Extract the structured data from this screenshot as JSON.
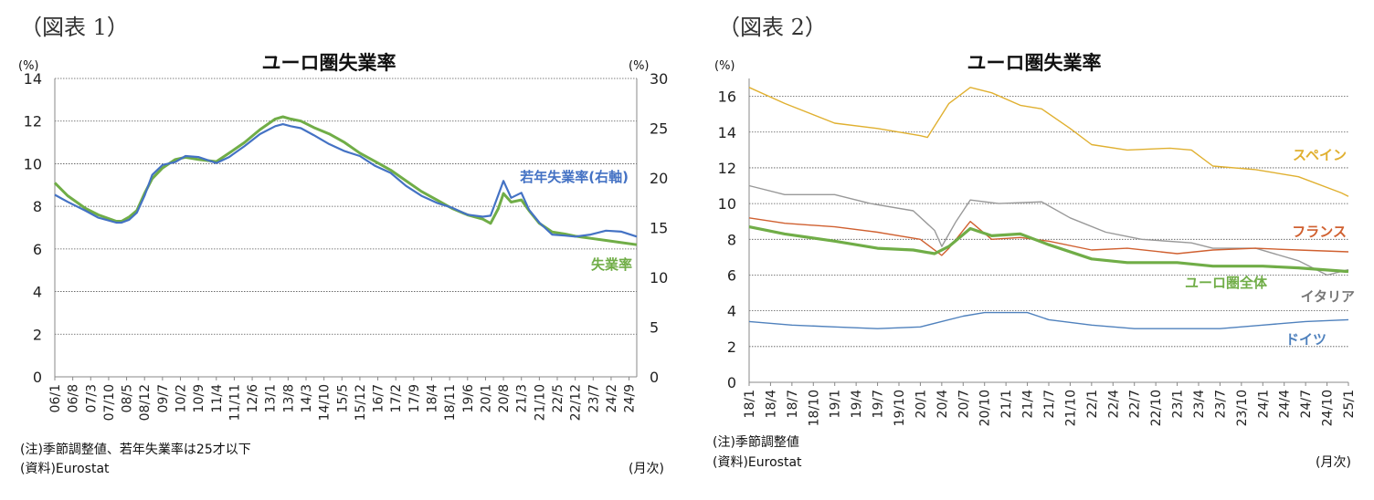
{
  "figure1": {
    "panel_label": "（図表 1）",
    "note": "(注)季節調整値、若年失業率は25才以下",
    "source": "(資料)Eurostat",
    "freq_label": "(月次)"
  },
  "figure2": {
    "panel_label": "（図表 2）",
    "note": "(注)季節調整値",
    "source": "(資料)Eurostat",
    "freq_label": "(月次)"
  },
  "chart_data": [
    {
      "type": "line",
      "title": "ユーロ圏失業率",
      "ylabel_left": "(%)",
      "ylabel_right": "(%)",
      "ylim_left": [
        0,
        14
      ],
      "ylim_right": [
        0,
        30
      ],
      "yticks_left": [
        "0",
        "2",
        "4",
        "6",
        "8",
        "10",
        "12",
        "14"
      ],
      "yticks_right": [
        "0",
        "5",
        "10",
        "15",
        "20",
        "25",
        "30"
      ],
      "x_range": [
        "2006-01",
        "2024-12"
      ],
      "xtick_labels": [
        "06/1",
        "06/8",
        "07/3",
        "07/10",
        "08/5",
        "08/12",
        "09/7",
        "10/2",
        "10/9",
        "11/4",
        "11/11",
        "12/6",
        "13/1",
        "13/8",
        "14/3",
        "14/10",
        "15/5",
        "15/12",
        "16/7",
        "17/2",
        "17/9",
        "18/4",
        "18/11",
        "19/6",
        "20/1",
        "20/8",
        "21/3",
        "21/10",
        "22/5",
        "22/12",
        "23/7",
        "24/2",
        "24/9"
      ],
      "grid": true,
      "series": [
        {
          "name": "失業率",
          "axis": "left",
          "color": "#70ad47",
          "points": [
            [
              "2006-01",
              9.1
            ],
            [
              "2006-06",
              8.5
            ],
            [
              "2007-01",
              7.9
            ],
            [
              "2007-06",
              7.6
            ],
            [
              "2008-01",
              7.3
            ],
            [
              "2008-03",
              7.3
            ],
            [
              "2008-06",
              7.5
            ],
            [
              "2008-09",
              7.8
            ],
            [
              "2008-12",
              8.6
            ],
            [
              "2009-03",
              9.3
            ],
            [
              "2009-07",
              9.8
            ],
            [
              "2009-12",
              10.2
            ],
            [
              "2010-04",
              10.3
            ],
            [
              "2010-09",
              10.2
            ],
            [
              "2011-04",
              10.1
            ],
            [
              "2011-09",
              10.5
            ],
            [
              "2012-03",
              11.0
            ],
            [
              "2012-09",
              11.6
            ],
            [
              "2013-03",
              12.1
            ],
            [
              "2013-06",
              12.2
            ],
            [
              "2013-09",
              12.1
            ],
            [
              "2014-01",
              12.0
            ],
            [
              "2014-06",
              11.7
            ],
            [
              "2014-12",
              11.4
            ],
            [
              "2015-06",
              11.0
            ],
            [
              "2015-12",
              10.5
            ],
            [
              "2016-06",
              10.1
            ],
            [
              "2016-12",
              9.7
            ],
            [
              "2017-06",
              9.2
            ],
            [
              "2017-12",
              8.7
            ],
            [
              "2018-06",
              8.3
            ],
            [
              "2018-12",
              7.9
            ],
            [
              "2019-06",
              7.6
            ],
            [
              "2019-12",
              7.4
            ],
            [
              "2020-03",
              7.2
            ],
            [
              "2020-06",
              7.9
            ],
            [
              "2020-08",
              8.6
            ],
            [
              "2020-11",
              8.2
            ],
            [
              "2021-03",
              8.3
            ],
            [
              "2021-06",
              7.8
            ],
            [
              "2021-10",
              7.2
            ],
            [
              "2022-03",
              6.8
            ],
            [
              "2022-08",
              6.7
            ],
            [
              "2022-12",
              6.6
            ],
            [
              "2023-06",
              6.5
            ],
            [
              "2023-12",
              6.4
            ],
            [
              "2024-06",
              6.3
            ],
            [
              "2024-12",
              6.2
            ]
          ]
        },
        {
          "name": "若年失業率(右軸)",
          "axis": "right",
          "color": "#4472c4",
          "points": [
            [
              "2006-01",
              18.3
            ],
            [
              "2006-06",
              17.6
            ],
            [
              "2007-01",
              16.7
            ],
            [
              "2007-06",
              16.0
            ],
            [
              "2008-01",
              15.5
            ],
            [
              "2008-03",
              15.5
            ],
            [
              "2008-06",
              15.8
            ],
            [
              "2008-09",
              16.5
            ],
            [
              "2008-12",
              18.2
            ],
            [
              "2009-03",
              20.3
            ],
            [
              "2009-07",
              21.3
            ],
            [
              "2009-12",
              21.6
            ],
            [
              "2010-04",
              22.2
            ],
            [
              "2010-09",
              22.1
            ],
            [
              "2011-04",
              21.5
            ],
            [
              "2011-09",
              22.1
            ],
            [
              "2012-03",
              23.2
            ],
            [
              "2012-09",
              24.4
            ],
            [
              "2013-03",
              25.2
            ],
            [
              "2013-06",
              25.4
            ],
            [
              "2013-09",
              25.2
            ],
            [
              "2014-01",
              25.0
            ],
            [
              "2014-06",
              24.3
            ],
            [
              "2014-12",
              23.4
            ],
            [
              "2015-06",
              22.7
            ],
            [
              "2015-12",
              22.2
            ],
            [
              "2016-06",
              21.2
            ],
            [
              "2016-12",
              20.5
            ],
            [
              "2017-06",
              19.2
            ],
            [
              "2017-12",
              18.2
            ],
            [
              "2018-06",
              17.5
            ],
            [
              "2018-12",
              17.0
            ],
            [
              "2019-06",
              16.3
            ],
            [
              "2019-12",
              16.1
            ],
            [
              "2020-03",
              16.2
            ],
            [
              "2020-06",
              18.3
            ],
            [
              "2020-08",
              19.7
            ],
            [
              "2020-11",
              18.0
            ],
            [
              "2021-03",
              18.5
            ],
            [
              "2021-06",
              16.8
            ],
            [
              "2021-10",
              15.5
            ],
            [
              "2022-03",
              14.3
            ],
            [
              "2022-08",
              14.2
            ],
            [
              "2022-12",
              14.1
            ],
            [
              "2023-06",
              14.3
            ],
            [
              "2023-12",
              14.7
            ],
            [
              "2024-06",
              14.6
            ],
            [
              "2024-12",
              14.1
            ]
          ]
        }
      ],
      "annotations": [
        {
          "text": "若年失業率(右軸)",
          "series": "若年失業率(右軸)"
        },
        {
          "text": "失業率",
          "series": "失業率"
        }
      ]
    },
    {
      "type": "line",
      "title": "ユーロ圏失業率",
      "ylabel": "(%)",
      "ylim": [
        0,
        17
      ],
      "yticks": [
        "0",
        "2",
        "4",
        "6",
        "8",
        "10",
        "12",
        "14",
        "16"
      ],
      "x_range": [
        "2018-01",
        "2025-01"
      ],
      "xtick_labels": [
        "18/1",
        "18/4",
        "18/7",
        "18/10",
        "19/1",
        "19/4",
        "19/7",
        "19/10",
        "20/1",
        "20/4",
        "20/7",
        "20/10",
        "21/1",
        "21/4",
        "21/7",
        "21/10",
        "22/1",
        "22/4",
        "22/7",
        "22/10",
        "23/1",
        "23/4",
        "23/7",
        "23/10",
        "24/1",
        "24/4",
        "24/7",
        "24/10",
        "25/1"
      ],
      "grid": true,
      "series": [
        {
          "name": "スペイン",
          "color": "#e0b030",
          "points": [
            [
              "2018-01",
              16.5
            ],
            [
              "2018-06",
              15.6
            ],
            [
              "2019-01",
              14.5
            ],
            [
              "2019-07",
              14.2
            ],
            [
              "2020-01",
              13.8
            ],
            [
              "2020-02",
              13.7
            ],
            [
              "2020-05",
              15.6
            ],
            [
              "2020-08",
              16.5
            ],
            [
              "2020-11",
              16.2
            ],
            [
              "2021-03",
              15.5
            ],
            [
              "2021-06",
              15.3
            ],
            [
              "2021-10",
              14.2
            ],
            [
              "2022-01",
              13.3
            ],
            [
              "2022-06",
              13.0
            ],
            [
              "2022-12",
              13.1
            ],
            [
              "2023-03",
              13.0
            ],
            [
              "2023-06",
              12.1
            ],
            [
              "2023-12",
              11.9
            ],
            [
              "2024-06",
              11.5
            ],
            [
              "2024-12",
              10.6
            ],
            [
              "2025-01",
              10.4
            ]
          ]
        },
        {
          "name": "イタリア",
          "color": "#999999",
          "points": [
            [
              "2018-01",
              11.0
            ],
            [
              "2018-06",
              10.5
            ],
            [
              "2019-01",
              10.5
            ],
            [
              "2019-06",
              10.0
            ],
            [
              "2019-12",
              9.6
            ],
            [
              "2020-03",
              8.5
            ],
            [
              "2020-04",
              7.6
            ],
            [
              "2020-06",
              9.0
            ],
            [
              "2020-08",
              10.2
            ],
            [
              "2020-12",
              10.0
            ],
            [
              "2021-06",
              10.1
            ],
            [
              "2021-10",
              9.2
            ],
            [
              "2022-03",
              8.4
            ],
            [
              "2022-08",
              8.0
            ],
            [
              "2023-03",
              7.8
            ],
            [
              "2023-06",
              7.5
            ],
            [
              "2023-12",
              7.5
            ],
            [
              "2024-06",
              6.8
            ],
            [
              "2024-10",
              6.0
            ],
            [
              "2025-01",
              6.3
            ]
          ]
        },
        {
          "name": "フランス",
          "color": "#d06030",
          "points": [
            [
              "2018-01",
              9.2
            ],
            [
              "2018-06",
              8.9
            ],
            [
              "2019-01",
              8.7
            ],
            [
              "2019-07",
              8.4
            ],
            [
              "2020-01",
              8.0
            ],
            [
              "2020-04",
              7.1
            ],
            [
              "2020-05",
              7.5
            ],
            [
              "2020-08",
              9.0
            ],
            [
              "2020-11",
              8.0
            ],
            [
              "2021-03",
              8.1
            ],
            [
              "2021-07",
              7.9
            ],
            [
              "2022-01",
              7.4
            ],
            [
              "2022-06",
              7.5
            ],
            [
              "2023-01",
              7.2
            ],
            [
              "2023-06",
              7.4
            ],
            [
              "2023-12",
              7.5
            ],
            [
              "2024-06",
              7.4
            ],
            [
              "2025-01",
              7.3
            ]
          ]
        },
        {
          "name": "ユーロ圏全体",
          "color": "#70ad47",
          "points": [
            [
              "2018-01",
              8.7
            ],
            [
              "2018-06",
              8.3
            ],
            [
              "2019-01",
              7.9
            ],
            [
              "2019-07",
              7.5
            ],
            [
              "2019-12",
              7.4
            ],
            [
              "2020-03",
              7.2
            ],
            [
              "2020-05",
              7.6
            ],
            [
              "2020-08",
              8.6
            ],
            [
              "2020-11",
              8.2
            ],
            [
              "2021-03",
              8.3
            ],
            [
              "2021-07",
              7.7
            ],
            [
              "2022-01",
              6.9
            ],
            [
              "2022-06",
              6.7
            ],
            [
              "2023-01",
              6.7
            ],
            [
              "2023-06",
              6.5
            ],
            [
              "2024-01",
              6.5
            ],
            [
              "2024-06",
              6.4
            ],
            [
              "2025-01",
              6.2
            ]
          ]
        },
        {
          "name": "ドイツ",
          "color": "#4f81bd",
          "points": [
            [
              "2018-01",
              3.4
            ],
            [
              "2018-07",
              3.2
            ],
            [
              "2019-01",
              3.1
            ],
            [
              "2019-07",
              3.0
            ],
            [
              "2020-01",
              3.1
            ],
            [
              "2020-07",
              3.7
            ],
            [
              "2020-10",
              3.9
            ],
            [
              "2021-04",
              3.9
            ],
            [
              "2021-07",
              3.5
            ],
            [
              "2022-01",
              3.2
            ],
            [
              "2022-07",
              3.0
            ],
            [
              "2023-01",
              3.0
            ],
            [
              "2023-07",
              3.0
            ],
            [
              "2024-01",
              3.2
            ],
            [
              "2024-07",
              3.4
            ],
            [
              "2025-01",
              3.5
            ]
          ]
        }
      ]
    }
  ]
}
